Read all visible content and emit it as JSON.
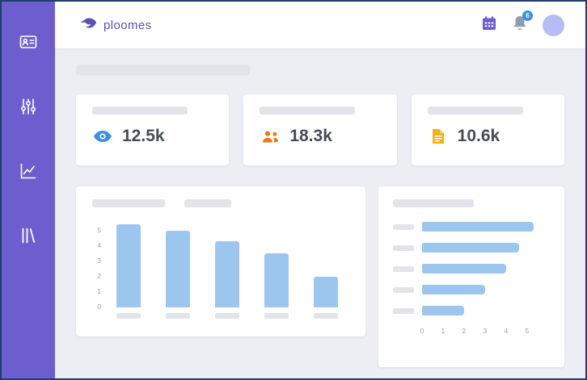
{
  "header": {
    "brand": "ploomes",
    "notification_count": "6"
  },
  "sidebar": {
    "items": [
      {
        "icon": "contact-card-icon"
      },
      {
        "icon": "filters-icon"
      },
      {
        "icon": "line-chart-icon"
      },
      {
        "icon": "library-icon"
      }
    ]
  },
  "stats": [
    {
      "icon": "eye-icon",
      "value": "12.5k",
      "color": "#3d8fe0"
    },
    {
      "icon": "people-icon",
      "value": "18.3k",
      "color": "#f0780f"
    },
    {
      "icon": "document-icon",
      "value": "10.6k",
      "color": "#f2b21d"
    }
  ],
  "chart_data": [
    {
      "type": "bar",
      "orientation": "vertical",
      "title": "",
      "categories": [
        "",
        "",
        "",
        "",
        ""
      ],
      "values": [
        5.4,
        5.0,
        4.3,
        3.5,
        2.0
      ],
      "ylim": [
        0,
        5
      ],
      "yticks": [
        0,
        1,
        2,
        3,
        4,
        5
      ],
      "bar_color": "#9dc6ef",
      "grid": false,
      "legend": false
    },
    {
      "type": "bar",
      "orientation": "horizontal",
      "title": "",
      "categories": [
        "",
        "",
        "",
        "",
        ""
      ],
      "values": [
        5.3,
        4.6,
        4.0,
        3.0,
        2.0
      ],
      "xlim": [
        0,
        5
      ],
      "xticks": [
        0,
        1,
        2,
        3,
        4,
        5
      ],
      "bar_color": "#9dc6ef",
      "grid": false,
      "legend": false
    }
  ]
}
